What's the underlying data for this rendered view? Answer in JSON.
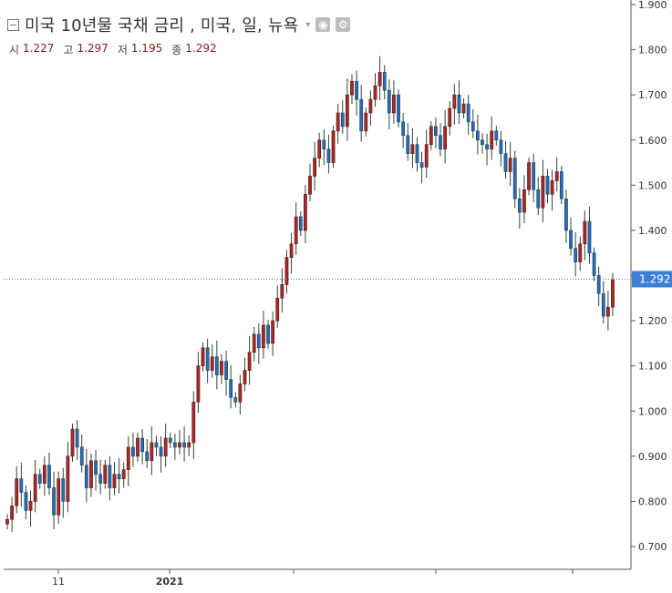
{
  "header": {
    "title": "미국 10년물 국채 금리 , 미국, 일, 뉴욕",
    "caret": "▾",
    "settings_icon": "gear-icon",
    "eye_icon": "eye-icon"
  },
  "ohlc": {
    "open_label": "시",
    "open": "1.227",
    "high_label": "고",
    "high": "1.297",
    "low_label": "저",
    "low": "1.195",
    "close_label": "종",
    "close": "1.292"
  },
  "colors": {
    "up": "#a52a2a",
    "down": "#2a6bb0",
    "wick": "#2e4a2e",
    "price_tag": "#3d7fd6",
    "price_line": "#3d7fd6"
  },
  "chart_data": {
    "type": "candlestick",
    "ylim": [
      0.65,
      1.9
    ],
    "y_ticks": [
      "0.700",
      "0.800",
      "0.900",
      "1.000",
      "1.100",
      "1.200",
      "1.300",
      "1.400",
      "1.500",
      "1.600",
      "1.700",
      "1.800",
      "1.900"
    ],
    "x_tick_labels": [
      {
        "label": "11",
        "bold": false
      },
      {
        "label": "2021",
        "bold": true
      },
      {
        "label": "",
        "bold": false
      },
      {
        "label": "",
        "bold": false
      },
      {
        "label": "",
        "bold": false
      }
    ],
    "last_price": "1.292",
    "closes": [
      0.76,
      0.79,
      0.85,
      0.82,
      0.78,
      0.8,
      0.86,
      0.84,
      0.88,
      0.83,
      0.77,
      0.85,
      0.8,
      0.9,
      0.96,
      0.92,
      0.88,
      0.83,
      0.89,
      0.86,
      0.84,
      0.88,
      0.83,
      0.86,
      0.85,
      0.87,
      0.92,
      0.9,
      0.94,
      0.91,
      0.89,
      0.93,
      0.92,
      0.9,
      0.94,
      0.93,
      0.92,
      0.93,
      0.92,
      0.93,
      1.02,
      1.1,
      1.14,
      1.09,
      1.12,
      1.08,
      1.11,
      1.07,
      1.03,
      1.02,
      1.06,
      1.09,
      1.13,
      1.17,
      1.14,
      1.19,
      1.15,
      1.2,
      1.25,
      1.28,
      1.34,
      1.37,
      1.43,
      1.4,
      1.48,
      1.52,
      1.56,
      1.6,
      1.58,
      1.55,
      1.62,
      1.66,
      1.63,
      1.7,
      1.73,
      1.69,
      1.62,
      1.66,
      1.69,
      1.72,
      1.75,
      1.71,
      1.66,
      1.7,
      1.64,
      1.61,
      1.57,
      1.59,
      1.55,
      1.54,
      1.59,
      1.63,
      1.61,
      1.58,
      1.63,
      1.67,
      1.7,
      1.66,
      1.68,
      1.64,
      1.62,
      1.6,
      1.59,
      1.58,
      1.62,
      1.6,
      1.57,
      1.53,
      1.56,
      1.47,
      1.44,
      1.49,
      1.55,
      1.49,
      1.45,
      1.52,
      1.48,
      1.51,
      1.53,
      1.47,
      1.4,
      1.36,
      1.33,
      1.37,
      1.42,
      1.35,
      1.3,
      1.26,
      1.21,
      1.23,
      1.29
    ]
  }
}
